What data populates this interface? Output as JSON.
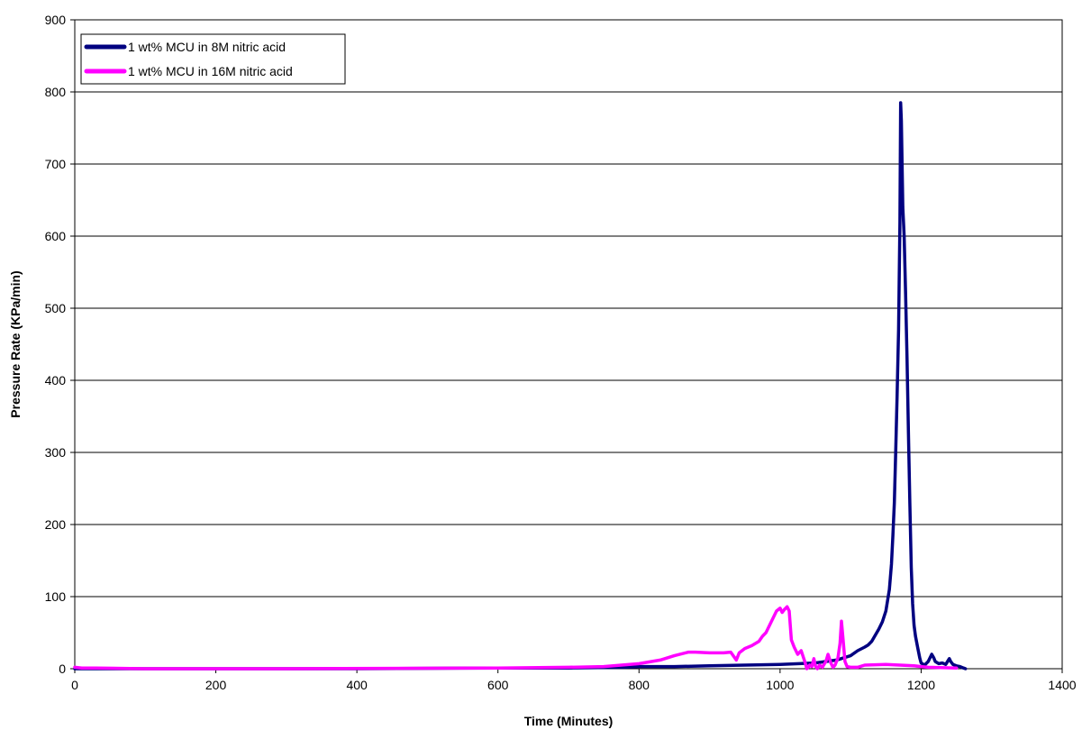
{
  "chart_data": {
    "type": "line",
    "title": "",
    "xlabel": "Time (Minutes)",
    "ylabel": "Pressure Rate (KPa/min)",
    "xlim": [
      0,
      1400
    ],
    "ylim": [
      0,
      900
    ],
    "x_ticks": [
      0,
      200,
      400,
      600,
      800,
      1000,
      1200,
      1400
    ],
    "y_ticks": [
      0,
      100,
      200,
      300,
      400,
      500,
      600,
      700,
      800,
      900
    ],
    "grid": "horizontal",
    "legend_position": "top-left",
    "series": [
      {
        "name": "1 wt% MCU in 8M nitric acid",
        "color": "#000080",
        "x": [
          0,
          200,
          400,
          600,
          700,
          780,
          800,
          850,
          900,
          950,
          1000,
          1050,
          1080,
          1100,
          1110,
          1120,
          1125,
          1130,
          1140,
          1145,
          1150,
          1155,
          1158,
          1160,
          1162,
          1164,
          1166,
          1168,
          1170,
          1171,
          1172,
          1173,
          1174,
          1176,
          1178,
          1180,
          1182,
          1184,
          1186,
          1188,
          1190,
          1192,
          1195,
          1198,
          1200,
          1205,
          1210,
          1215,
          1218,
          1220,
          1225,
          1230,
          1235,
          1240,
          1242,
          1245,
          1250,
          1255,
          1260,
          1263
        ],
        "values": [
          0,
          0,
          0,
          1,
          1,
          2,
          3,
          3,
          4,
          5,
          6,
          8,
          12,
          18,
          25,
          30,
          33,
          38,
          55,
          65,
          80,
          110,
          145,
          185,
          230,
          300,
          380,
          470,
          620,
          785,
          760,
          700,
          640,
          600,
          520,
          430,
          330,
          230,
          140,
          90,
          60,
          45,
          30,
          15,
          8,
          5,
          10,
          20,
          15,
          10,
          7,
          8,
          6,
          14,
          10,
          6,
          4,
          3,
          1,
          0
        ]
      },
      {
        "name": "1 wt% MCU in 16M nitric acid",
        "color": "#ff00ff",
        "x": [
          0,
          10,
          30,
          100,
          300,
          600,
          700,
          750,
          800,
          830,
          850,
          870,
          880,
          900,
          920,
          930,
          938,
          942,
          950,
          960,
          970,
          975,
          980,
          985,
          990,
          995,
          1000,
          1003,
          1006,
          1010,
          1013,
          1016,
          1020,
          1025,
          1030,
          1035,
          1038,
          1040,
          1042,
          1045,
          1048,
          1050,
          1053,
          1056,
          1060,
          1065,
          1068,
          1072,
          1075,
          1078,
          1082,
          1085,
          1087,
          1089,
          1092,
          1095,
          1100,
          1110,
          1120,
          1150,
          1170,
          1190,
          1200,
          1210,
          1250
        ],
        "values": [
          2,
          1,
          1,
          0,
          0,
          1,
          2,
          3,
          7,
          12,
          18,
          23,
          23,
          22,
          22,
          23,
          12,
          22,
          28,
          32,
          38,
          45,
          50,
          60,
          70,
          80,
          84,
          78,
          82,
          86,
          80,
          40,
          30,
          20,
          25,
          10,
          0,
          2,
          5,
          3,
          14,
          4,
          0,
          5,
          2,
          10,
          20,
          8,
          2,
          5,
          15,
          35,
          66,
          45,
          10,
          3,
          2,
          2,
          5,
          6,
          5,
          4,
          3,
          2,
          1
        ]
      }
    ]
  }
}
